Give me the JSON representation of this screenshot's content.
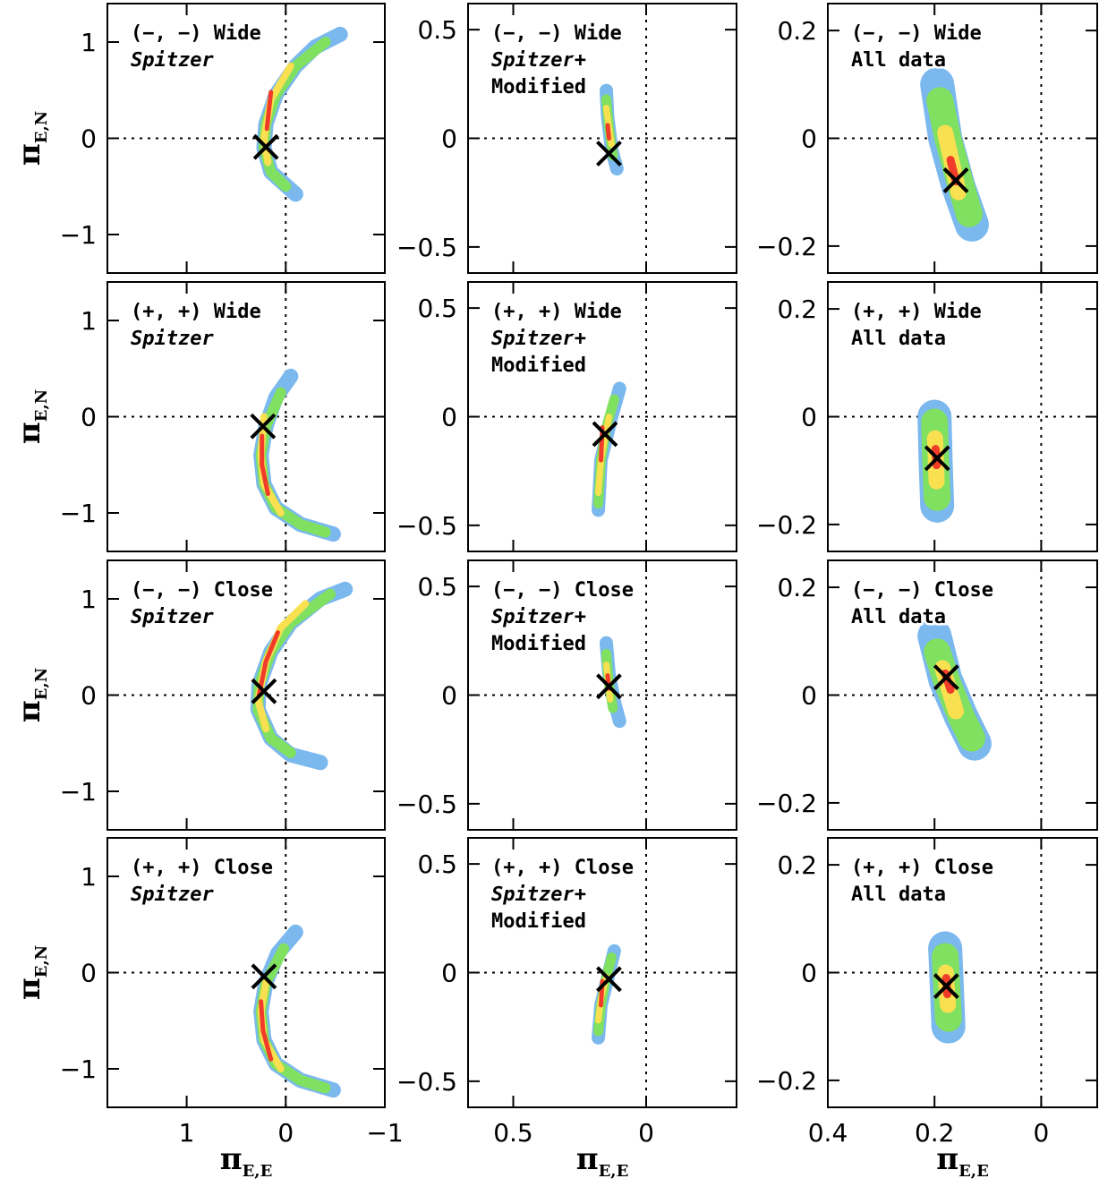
{
  "chart_data": [
    {
      "type": "scatter",
      "label": [
        [
          "(−, −) Wide"
        ],
        [
          "Spitzer"
        ]
      ],
      "ylabel": {
        "symbol": "π",
        "subscript": "E,N"
      },
      "xlim": [
        1.8,
        -1
      ],
      "ylim": [
        -1.4,
        1.4
      ],
      "xticks": [
        1,
        0,
        {
          "value": -1,
          "label": "−1"
        }
      ],
      "yticks": [
        {
          "value": -1,
          "label": "−1"
        },
        0,
        1
      ],
      "vline": 0,
      "hline": 0,
      "series": [
        {
          "color": "#7bb8ee",
          "x": [
            -0.55,
            -0.3,
            -0.1,
            0.1,
            0.2,
            0.22,
            0.15,
            -0.1
          ],
          "y": [
            1.08,
            0.95,
            0.75,
            0.45,
            0.15,
            -0.1,
            -0.35,
            -0.58
          ]
        },
        {
          "color": "#80e060",
          "x": [
            -0.4,
            -0.1,
            0.1,
            0.2,
            0.22,
            0.15,
            0.0
          ],
          "y": [
            1.0,
            0.75,
            0.45,
            0.15,
            -0.1,
            -0.35,
            -0.5
          ]
        },
        {
          "color": "#f8e050",
          "x": [
            -0.05,
            0.15,
            0.22,
            0.18
          ],
          "y": [
            0.75,
            0.4,
            0.0,
            -0.25
          ]
        },
        {
          "color": "#f03c28",
          "x": [
            0.15,
            0.19
          ],
          "y": [
            0.48,
            0.1
          ]
        }
      ],
      "best_fit": {
        "x": 0.2,
        "y": -0.09
      }
    },
    {
      "type": "scatter",
      "label": [
        [
          "(−, −) Wide"
        ],
        [
          "Spitzer",
          "+"
        ],
        [
          "Modified"
        ]
      ],
      "xlim": [
        0.67,
        -0.34
      ],
      "ylim": [
        -0.62,
        0.62
      ],
      "xticks": [
        0.5,
        0
      ],
      "yticks": [
        {
          "value": -0.5,
          "label": "−0.5"
        },
        0,
        0.5
      ],
      "vline": 0,
      "hline": 0,
      "series": [
        {
          "color": "#7bb8ee",
          "x": [
            0.15,
            0.145,
            0.13,
            0.11
          ],
          "y": [
            0.22,
            0.1,
            -0.05,
            -0.14
          ]
        },
        {
          "color": "#80e060",
          "x": [
            0.15,
            0.14,
            0.125
          ],
          "y": [
            0.18,
            0.05,
            -0.08
          ]
        },
        {
          "color": "#f8e050",
          "x": [
            0.15,
            0.13
          ],
          "y": [
            0.14,
            -0.03
          ]
        },
        {
          "color": "#f03c28",
          "x": [
            0.145,
            0.14
          ],
          "y": [
            0.06,
            0.0
          ]
        }
      ],
      "best_fit": {
        "x": 0.14,
        "y": -0.07
      }
    },
    {
      "type": "scatter",
      "label": [
        [
          "(−, −) Wide"
        ],
        [
          "All data"
        ]
      ],
      "xlim": [
        0.4,
        -0.105
      ],
      "ylim": [
        -0.25,
        0.25
      ],
      "xticks": [
        0.4,
        0.2,
        0
      ],
      "yticks": [
        {
          "value": -0.2,
          "label": "−0.2"
        },
        0,
        0.2
      ],
      "vline": 0,
      "hline": 0,
      "series": [
        {
          "color": "#7bb8ee",
          "x": [
            0.195,
            0.18,
            0.155,
            0.13
          ],
          "y": [
            0.1,
            0.0,
            -0.09,
            -0.16
          ]
        },
        {
          "color": "#80e060",
          "x": [
            0.19,
            0.175,
            0.15,
            0.135
          ],
          "y": [
            0.07,
            0.0,
            -0.09,
            -0.14
          ]
        },
        {
          "color": "#f8e050",
          "x": [
            0.18,
            0.155
          ],
          "y": [
            0.01,
            -0.1
          ]
        },
        {
          "color": "#f03c28",
          "x": [
            0.17,
            0.16
          ],
          "y": [
            -0.04,
            -0.08
          ]
        }
      ],
      "best_fit": {
        "x": 0.16,
        "y": -0.078
      }
    },
    {
      "type": "scatter",
      "label": [
        [
          "(+, +) Wide"
        ],
        [
          "Spitzer"
        ]
      ],
      "ylabel": {
        "symbol": "π",
        "subscript": "E,N"
      },
      "xlim": [
        1.8,
        -1
      ],
      "ylim": [
        -1.4,
        1.4
      ],
      "xticks": [
        1,
        0,
        {
          "value": -1,
          "label": "−1"
        }
      ],
      "yticks": [
        {
          "value": -1,
          "label": "−1"
        },
        0,
        1
      ],
      "vline": 0,
      "hline": 0,
      "series": [
        {
          "color": "#7bb8ee",
          "x": [
            -0.05,
            0.1,
            0.2,
            0.25,
            0.22,
            0.1,
            -0.15,
            -0.48
          ],
          "y": [
            0.42,
            0.2,
            -0.1,
            -0.4,
            -0.7,
            -0.95,
            -1.12,
            -1.22
          ]
        },
        {
          "color": "#80e060",
          "x": [
            0.05,
            0.2,
            0.25,
            0.22,
            0.1,
            -0.15,
            -0.4
          ],
          "y": [
            0.25,
            -0.1,
            -0.4,
            -0.7,
            -0.95,
            -1.12,
            -1.2
          ]
        },
        {
          "color": "#f8e050",
          "x": [
            0.22,
            0.25,
            0.22,
            0.05
          ],
          "y": [
            0.0,
            -0.4,
            -0.7,
            -1.0
          ]
        },
        {
          "color": "#f03c28",
          "x": [
            0.24,
            0.24,
            0.18
          ],
          "y": [
            -0.2,
            -0.5,
            -0.8
          ]
        }
      ],
      "best_fit": {
        "x": 0.23,
        "y": -0.1
      }
    },
    {
      "type": "scatter",
      "label": [
        [
          "(+, +) Wide"
        ],
        [
          "Spitzer",
          "+"
        ],
        [
          "Modified"
        ]
      ],
      "xlim": [
        0.67,
        -0.34
      ],
      "ylim": [
        -0.62,
        0.62
      ],
      "xticks": [
        0.5,
        0
      ],
      "yticks": [
        {
          "value": -0.5,
          "label": "−0.5"
        },
        0,
        0.5
      ],
      "vline": 0,
      "hline": 0,
      "series": [
        {
          "color": "#7bb8ee",
          "x": [
            0.1,
            0.13,
            0.17,
            0.18
          ],
          "y": [
            0.13,
            0.0,
            -0.2,
            -0.43
          ]
        },
        {
          "color": "#80e060",
          "x": [
            0.12,
            0.15,
            0.17,
            0.18
          ],
          "y": [
            0.08,
            -0.05,
            -0.2,
            -0.4
          ]
        },
        {
          "color": "#f8e050",
          "x": [
            0.14,
            0.17,
            0.18
          ],
          "y": [
            0.0,
            -0.2,
            -0.35
          ]
        },
        {
          "color": "#f03c28",
          "x": [
            0.165,
            0.17
          ],
          "y": [
            -0.05,
            -0.2
          ]
        }
      ],
      "best_fit": {
        "x": 0.155,
        "y": -0.08
      }
    },
    {
      "type": "scatter",
      "label": [
        [
          "(+, +) Wide"
        ],
        [
          "All data"
        ]
      ],
      "xlim": [
        0.4,
        -0.105
      ],
      "ylim": [
        -0.25,
        0.25
      ],
      "xticks": [
        0.4,
        0.2,
        0
      ],
      "yticks": [
        {
          "value": -0.2,
          "label": "−0.2"
        },
        0,
        0.2
      ],
      "vline": 0,
      "hline": 0,
      "series": [
        {
          "color": "#7bb8ee",
          "x": [
            0.2,
            0.198,
            0.195
          ],
          "y": [
            0.0,
            -0.08,
            -0.165
          ]
        },
        {
          "color": "#80e060",
          "x": [
            0.2,
            0.198,
            0.195
          ],
          "y": [
            -0.01,
            -0.08,
            -0.15
          ]
        },
        {
          "color": "#f8e050",
          "x": [
            0.199,
            0.196
          ],
          "y": [
            -0.04,
            -0.12
          ]
        },
        {
          "color": "#f03c28",
          "x": [
            0.198,
            0.196
          ],
          "y": [
            -0.06,
            -0.09
          ]
        }
      ],
      "best_fit": {
        "x": 0.195,
        "y": -0.077
      }
    },
    {
      "type": "scatter",
      "label": [
        [
          "(−, −) Close"
        ],
        [
          "Spitzer"
        ]
      ],
      "ylabel": {
        "symbol": "π",
        "subscript": "E,N"
      },
      "xlim": [
        1.8,
        -1
      ],
      "ylim": [
        -1.4,
        1.4
      ],
      "xticks": [
        1,
        0,
        {
          "value": -1,
          "label": "−1"
        }
      ],
      "yticks": [
        {
          "value": -1,
          "label": "−1"
        },
        0,
        1
      ],
      "vline": 0,
      "hline": 0,
      "series": [
        {
          "color": "#7bb8ee",
          "x": [
            -0.6,
            -0.35,
            -0.05,
            0.15,
            0.27,
            0.28,
            0.15,
            -0.05,
            -0.35
          ],
          "y": [
            1.1,
            1.0,
            0.75,
            0.45,
            0.1,
            -0.15,
            -0.45,
            -0.62,
            -0.7
          ]
        },
        {
          "color": "#80e060",
          "x": [
            -0.45,
            -0.05,
            0.15,
            0.27,
            0.28,
            0.15,
            -0.05
          ],
          "y": [
            1.05,
            0.75,
            0.45,
            0.1,
            -0.15,
            -0.45,
            -0.6
          ]
        },
        {
          "color": "#f8e050",
          "x": [
            -0.2,
            0.05,
            0.2,
            0.28,
            0.2
          ],
          "y": [
            0.95,
            0.7,
            0.35,
            -0.05,
            -0.35
          ]
        },
        {
          "color": "#f03c28",
          "x": [
            0.08,
            0.2,
            0.27
          ],
          "y": [
            0.65,
            0.35,
            0.0
          ]
        }
      ],
      "best_fit": {
        "x": 0.22,
        "y": 0.04
      }
    },
    {
      "type": "scatter",
      "label": [
        [
          "(−, −) Close"
        ],
        [
          "Spitzer",
          "+"
        ],
        [
          "Modified"
        ]
      ],
      "xlim": [
        0.67,
        -0.34
      ],
      "ylim": [
        -0.62,
        0.62
      ],
      "xticks": [
        0.5,
        0
      ],
      "yticks": [
        {
          "value": -0.5,
          "label": "−0.5"
        },
        0,
        0.5
      ],
      "vline": 0,
      "hline": 0,
      "series": [
        {
          "color": "#7bb8ee",
          "x": [
            0.15,
            0.14,
            0.12,
            0.1
          ],
          "y": [
            0.24,
            0.1,
            -0.03,
            -0.12
          ]
        },
        {
          "color": "#80e060",
          "x": [
            0.15,
            0.14,
            0.125
          ],
          "y": [
            0.19,
            0.05,
            -0.06
          ]
        },
        {
          "color": "#f8e050",
          "x": [
            0.15,
            0.135
          ],
          "y": [
            0.14,
            -0.02
          ]
        },
        {
          "color": "#f03c28",
          "x": [
            0.145,
            0.14
          ],
          "y": [
            0.09,
            0.03
          ]
        }
      ],
      "best_fit": {
        "x": 0.14,
        "y": 0.04
      }
    },
    {
      "type": "scatter",
      "label": [
        [
          "(−, −) Close"
        ],
        [
          "All data"
        ]
      ],
      "xlim": [
        0.4,
        -0.105
      ],
      "ylim": [
        -0.25,
        0.25
      ],
      "xticks": [
        0.4,
        0.2,
        0
      ],
      "yticks": [
        {
          "value": -0.2,
          "label": "−0.2"
        },
        0,
        0.2
      ],
      "vline": 0,
      "hline": 0,
      "series": [
        {
          "color": "#7bb8ee",
          "x": [
            0.2,
            0.18,
            0.15,
            0.125
          ],
          "y": [
            0.11,
            0.03,
            -0.04,
            -0.09
          ]
        },
        {
          "color": "#80e060",
          "x": [
            0.195,
            0.175,
            0.15,
            0.13
          ],
          "y": [
            0.08,
            0.02,
            -0.04,
            -0.08
          ]
        },
        {
          "color": "#f8e050",
          "x": [
            0.185,
            0.16
          ],
          "y": [
            0.05,
            -0.03
          ]
        },
        {
          "color": "#f03c28",
          "x": [
            0.18,
            0.17
          ],
          "y": [
            0.04,
            0.01
          ]
        }
      ],
      "best_fit": {
        "x": 0.178,
        "y": 0.033
      }
    },
    {
      "type": "scatter",
      "label": [
        [
          "(+, +) Close"
        ],
        [
          "Spitzer"
        ]
      ],
      "ylabel": {
        "symbol": "π",
        "subscript": "E,N"
      },
      "xlabel": {
        "symbol": "π",
        "subscript": "E,E"
      },
      "xlim": [
        1.8,
        -1
      ],
      "ylim": [
        -1.4,
        1.4
      ],
      "xticks": [
        1,
        0,
        {
          "value": -1,
          "label": "−1"
        }
      ],
      "yticks": [
        {
          "value": -1,
          "label": "−1"
        },
        0,
        1
      ],
      "vline": 0,
      "hline": 0,
      "series": [
        {
          "color": "#7bb8ee",
          "x": [
            -0.1,
            0.08,
            0.2,
            0.25,
            0.22,
            0.1,
            -0.15,
            -0.48
          ],
          "y": [
            0.42,
            0.2,
            -0.1,
            -0.4,
            -0.7,
            -0.95,
            -1.12,
            -1.22
          ]
        },
        {
          "color": "#80e060",
          "x": [
            0.02,
            0.2,
            0.25,
            0.22,
            0.1,
            -0.15,
            -0.4
          ],
          "y": [
            0.25,
            -0.1,
            -0.4,
            -0.7,
            -0.95,
            -1.12,
            -1.2
          ]
        },
        {
          "color": "#f8e050",
          "x": [
            0.2,
            0.25,
            0.22,
            0.05
          ],
          "y": [
            -0.1,
            -0.4,
            -0.7,
            -1.0
          ]
        },
        {
          "color": "#f03c28",
          "x": [
            0.25,
            0.23,
            0.15
          ],
          "y": [
            -0.3,
            -0.6,
            -0.9
          ]
        }
      ],
      "best_fit": {
        "x": 0.22,
        "y": -0.04
      }
    },
    {
      "type": "scatter",
      "label": [
        [
          "(+, +) Close"
        ],
        [
          "Spitzer",
          "+"
        ],
        [
          "Modified"
        ]
      ],
      "xlabel": {
        "symbol": "π",
        "subscript": "E,E"
      },
      "xlim": [
        0.67,
        -0.34
      ],
      "ylim": [
        -0.62,
        0.62
      ],
      "xticks": [
        0.5,
        0
      ],
      "yticks": [
        {
          "value": -0.5,
          "label": "−0.5"
        },
        0,
        0.5
      ],
      "vline": 0,
      "hline": 0,
      "series": [
        {
          "color": "#7bb8ee",
          "x": [
            0.12,
            0.14,
            0.17,
            0.18
          ],
          "y": [
            0.1,
            0.0,
            -0.15,
            -0.3
          ]
        },
        {
          "color": "#80e060",
          "x": [
            0.13,
            0.15,
            0.17,
            0.18
          ],
          "y": [
            0.07,
            -0.02,
            -0.15,
            -0.27
          ]
        },
        {
          "color": "#f8e050",
          "x": [
            0.15,
            0.17,
            0.18
          ],
          "y": [
            -0.02,
            -0.12,
            -0.22
          ]
        },
        {
          "color": "#f03c28",
          "x": [
            0.165,
            0.17
          ],
          "y": [
            -0.04,
            -0.15
          ]
        }
      ],
      "best_fit": {
        "x": 0.14,
        "y": -0.03
      }
    },
    {
      "type": "scatter",
      "label": [
        [
          "(+, +) Close"
        ],
        [
          "All data"
        ]
      ],
      "xlabel": {
        "symbol": "π",
        "subscript": "E,E"
      },
      "xlim": [
        0.4,
        -0.105
      ],
      "ylim": [
        -0.25,
        0.25
      ],
      "xticks": [
        0.4,
        0.2,
        0
      ],
      "yticks": [
        {
          "value": -0.2,
          "label": "−0.2"
        },
        0,
        0.2
      ],
      "vline": 0,
      "hline": 0,
      "series": [
        {
          "color": "#7bb8ee",
          "x": [
            0.18,
            0.177,
            0.174
          ],
          "y": [
            0.045,
            -0.025,
            -0.1
          ]
        },
        {
          "color": "#80e060",
          "x": [
            0.18,
            0.177,
            0.174
          ],
          "y": [
            0.03,
            -0.025,
            -0.085
          ]
        },
        {
          "color": "#f8e050",
          "x": [
            0.179,
            0.175
          ],
          "y": [
            0.0,
            -0.06
          ]
        },
        {
          "color": "#f03c28",
          "x": [
            0.178,
            0.176
          ],
          "y": [
            -0.01,
            -0.04
          ]
        }
      ],
      "best_fit": {
        "x": 0.178,
        "y": -0.025
      }
    }
  ]
}
